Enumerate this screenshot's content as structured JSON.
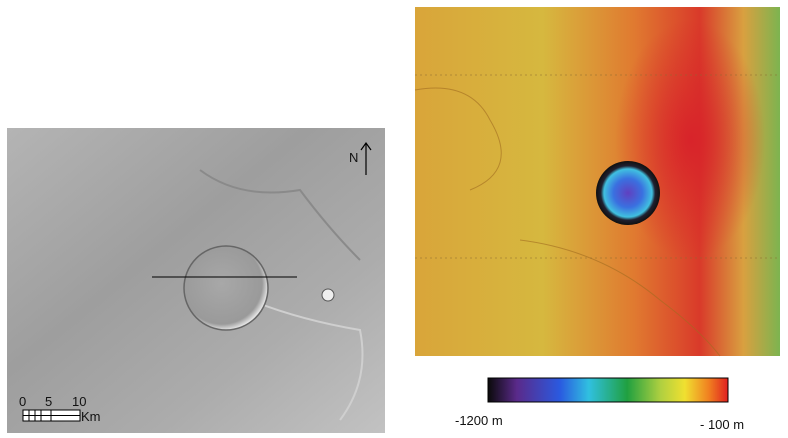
{
  "left_panel": {
    "north_label": "N",
    "scale_bar": {
      "labels": [
        "0",
        "5",
        "10"
      ],
      "unit": "Km"
    }
  },
  "right_panel": {
    "colorbar": {
      "min_label": "-1200 m",
      "max_label": "- 100 m"
    }
  }
}
